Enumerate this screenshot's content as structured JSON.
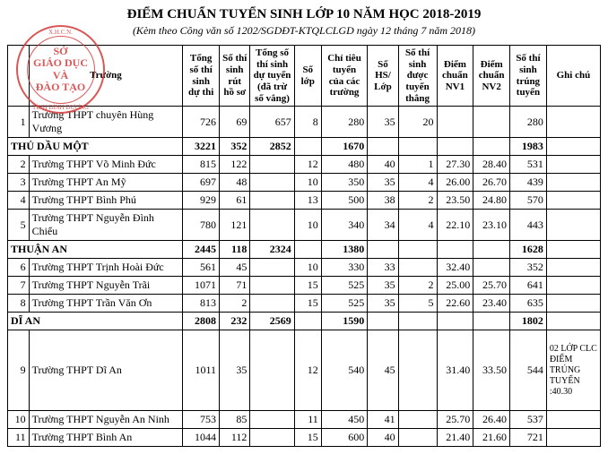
{
  "title": "ĐIỂM CHUẨN TUYỂN SINH LỚP 10 NĂM HỌC 2018-2019",
  "subtitle": "(Kèm theo Công văn số  1202/SGDĐT-KTQLCLGD ngày 12 tháng 7 năm 2018)",
  "stamp": {
    "top": "X.H.C.N.",
    "line1": "SỞ",
    "line2": "GIÁO DỤC VÀ",
    "line3": "ĐÀO TẠO",
    "bottom": "TỈNH BÌNH DƯƠNG"
  },
  "columns": [
    "",
    "Trường",
    "Tổng số thí sinh dự thi",
    "Số thí sinh rút hồ sơ",
    "Tổng số thí sinh dự tuyển (đã trừ số vắng)",
    "Số lớp",
    "Chỉ tiêu tuyển của các trường",
    "Số HS/ Lớp",
    "Số thí sinh được tuyển thẳng",
    "Điểm chuẩn NV1",
    "Điểm chuẩn NV2",
    "Số thí sinh trúng tuyển",
    "Ghi chú"
  ],
  "rows": [
    {
      "type": "data",
      "stt": "1",
      "name": "Trường THPT chuyên Hùng Vương",
      "v": [
        "726",
        "69",
        "657",
        "8",
        "280",
        "35",
        "20",
        "",
        "",
        "280",
        ""
      ]
    },
    {
      "type": "group",
      "name": "THỦ DẦU MỘT",
      "v": [
        "3221",
        "352",
        "2852",
        "",
        "1670",
        "",
        "",
        "",
        "",
        "1983",
        ""
      ]
    },
    {
      "type": "data",
      "stt": "2",
      "name": "Trường THPT Võ Minh Đức",
      "v": [
        "815",
        "122",
        "",
        "12",
        "480",
        "40",
        "1",
        "27.30",
        "28.40",
        "531",
        ""
      ]
    },
    {
      "type": "data",
      "stt": "3",
      "name": "Trường THPT An Mỹ",
      "v": [
        "697",
        "48",
        "",
        "10",
        "350",
        "35",
        "4",
        "26.00",
        "26.70",
        "439",
        ""
      ]
    },
    {
      "type": "data",
      "stt": "4",
      "name": "Trường THPT Bình Phú",
      "v": [
        "929",
        "61",
        "",
        "13",
        "500",
        "38",
        "2",
        "23.50",
        "24.80",
        "570",
        ""
      ]
    },
    {
      "type": "data",
      "stt": "5",
      "name": "Trường THPT Nguyễn Đình Chiểu",
      "v": [
        "780",
        "121",
        "",
        "10",
        "340",
        "34",
        "4",
        "22.10",
        "23.10",
        "443",
        ""
      ]
    },
    {
      "type": "group",
      "name": "THUẬN AN",
      "v": [
        "2445",
        "118",
        "2324",
        "",
        "1380",
        "",
        "",
        "",
        "",
        "1628",
        ""
      ]
    },
    {
      "type": "data",
      "stt": "6",
      "name": "Trường THPT Trịnh Hoài Đức",
      "v": [
        "561",
        "45",
        "",
        "10",
        "330",
        "33",
        "",
        "32.40",
        "",
        "352",
        ""
      ]
    },
    {
      "type": "data",
      "stt": "7",
      "name": "Trường THPT Nguyễn Trãi",
      "v": [
        "1071",
        "71",
        "",
        "15",
        "525",
        "35",
        "2",
        "25.00",
        "25.70",
        "641",
        ""
      ]
    },
    {
      "type": "data",
      "stt": "8",
      "name": "Trường THPT Trần Văn Ơn",
      "v": [
        "813",
        "2",
        "",
        "15",
        "525",
        "35",
        "5",
        "22.60",
        "23.40",
        "635",
        ""
      ]
    },
    {
      "type": "group",
      "name": "DĨ AN",
      "v": [
        "2808",
        "232",
        "2569",
        "",
        "1590",
        "",
        "",
        "",
        "",
        "1802",
        ""
      ]
    },
    {
      "type": "data",
      "stt": "9",
      "name": "Trường THPT Dĩ An",
      "v": [
        "1011",
        "35",
        "",
        "12",
        "540",
        "45",
        "",
        "31.40",
        "33.50",
        "544",
        "02 LỚP CLC ĐIỂM TRÚNG TUYỂN :40.30"
      ],
      "tall": true
    },
    {
      "type": "data",
      "stt": "10",
      "name": "Trường THPT Nguyễn An Ninh",
      "v": [
        "753",
        "85",
        "",
        "11",
        "450",
        "41",
        "",
        "25.70",
        "26.40",
        "537",
        ""
      ]
    },
    {
      "type": "data",
      "stt": "11",
      "name": "Trường THPT Bình An",
      "v": [
        "1044",
        "112",
        "",
        "15",
        "600",
        "40",
        "",
        "21.40",
        "21.60",
        "721",
        ""
      ]
    }
  ]
}
